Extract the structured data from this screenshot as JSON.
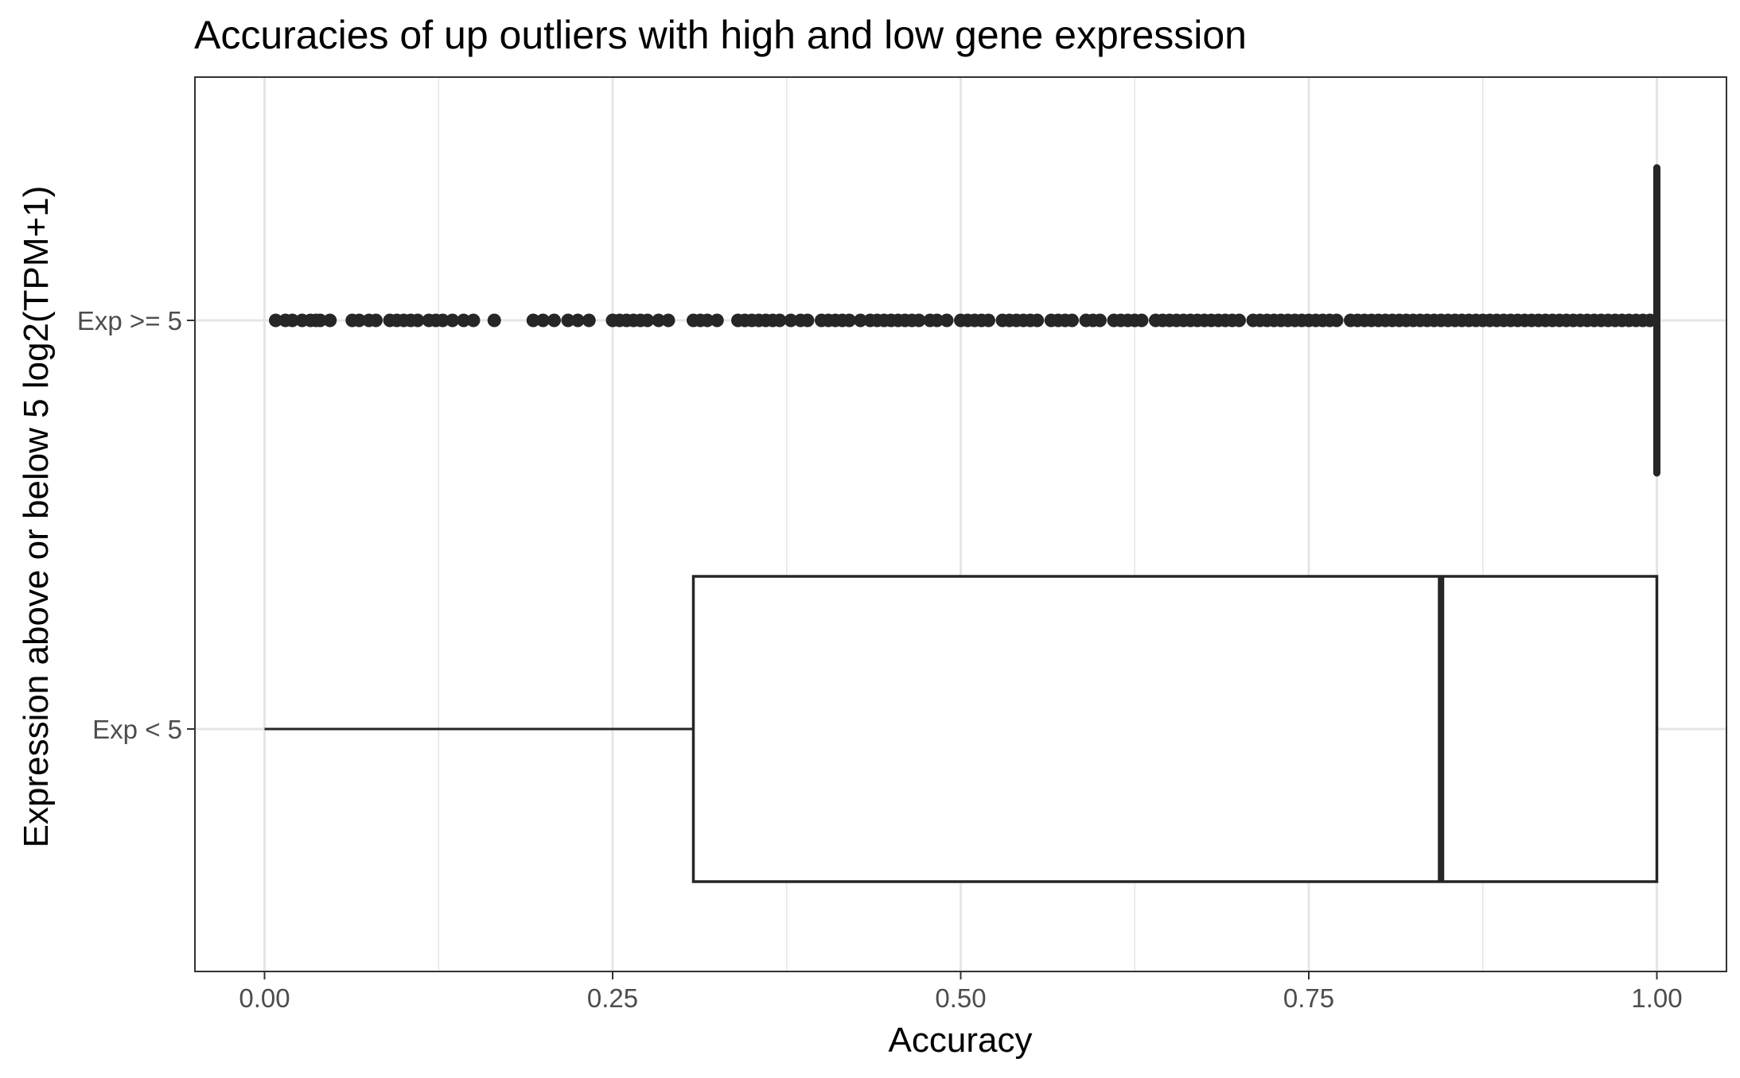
{
  "chart_data": {
    "type": "boxplot",
    "title": "Accuracies of up outliers with high and low gene expression",
    "xlabel": "Accuracy",
    "ylabel": "Expression above or below 5 log2(TPM+1)",
    "xlim": [
      -0.05,
      1.05
    ],
    "x_ticks": [
      0,
      0.25,
      0.5,
      0.75,
      1.0
    ],
    "x_tick_labels": [
      "0.00",
      "0.25",
      "0.50",
      "0.75",
      "1.00"
    ],
    "categories": [
      "Exp >= 5",
      "Exp < 5"
    ],
    "grid": true,
    "colors": {
      "line": "#262626",
      "grid": "#e6e6e6",
      "panel_border": "#333333",
      "background": "#ffffff"
    },
    "boxes": [
      {
        "category": "Exp >= 5",
        "min": 1.0,
        "q1": 1.0,
        "median": 1.0,
        "q3": 1.0,
        "max": 1.0,
        "outliers": [
          0.008,
          0.015,
          0.02,
          0.027,
          0.033,
          0.037,
          0.04,
          0.047,
          0.063,
          0.068,
          0.075,
          0.08,
          0.09,
          0.095,
          0.1,
          0.105,
          0.11,
          0.118,
          0.123,
          0.128,
          0.135,
          0.143,
          0.15,
          0.165,
          0.193,
          0.2,
          0.208,
          0.218,
          0.225,
          0.233,
          0.25,
          0.255,
          0.26,
          0.265,
          0.27,
          0.275,
          0.283,
          0.29,
          0.308,
          0.313,
          0.318,
          0.325,
          0.34,
          0.345,
          0.35,
          0.355,
          0.36,
          0.365,
          0.37,
          0.378,
          0.385,
          0.39,
          0.4,
          0.405,
          0.41,
          0.415,
          0.42,
          0.428,
          0.435,
          0.44,
          0.445,
          0.45,
          0.455,
          0.46,
          0.465,
          0.47,
          0.478,
          0.483,
          0.49,
          0.5,
          0.505,
          0.51,
          0.515,
          0.52,
          0.53,
          0.535,
          0.54,
          0.545,
          0.55,
          0.555,
          0.565,
          0.57,
          0.575,
          0.58,
          0.59,
          0.595,
          0.6,
          0.61,
          0.615,
          0.62,
          0.625,
          0.63,
          0.64,
          0.645,
          0.65,
          0.655,
          0.66,
          0.665,
          0.67,
          0.675,
          0.68,
          0.685,
          0.69,
          0.695,
          0.7,
          0.71,
          0.715,
          0.72,
          0.725,
          0.73,
          0.735,
          0.74,
          0.745,
          0.75,
          0.755,
          0.76,
          0.765,
          0.77,
          0.78,
          0.785,
          0.79,
          0.795,
          0.8,
          0.805,
          0.81,
          0.815,
          0.82,
          0.825,
          0.83,
          0.835,
          0.84,
          0.845,
          0.85,
          0.855,
          0.86,
          0.865,
          0.87,
          0.875,
          0.88,
          0.885,
          0.89,
          0.895,
          0.9,
          0.905,
          0.91,
          0.915,
          0.92,
          0.925,
          0.93,
          0.935,
          0.94,
          0.945,
          0.95,
          0.955,
          0.96,
          0.965,
          0.97,
          0.975,
          0.98,
          0.985,
          0.99,
          0.995
        ]
      },
      {
        "category": "Exp < 5",
        "min": 0.0,
        "q1": 0.308,
        "median": 0.845,
        "q3": 1.0,
        "max": 1.0,
        "outliers": []
      }
    ]
  }
}
